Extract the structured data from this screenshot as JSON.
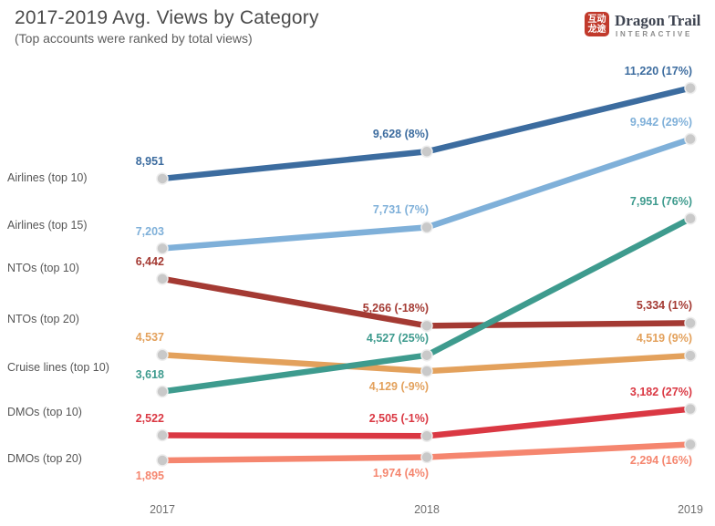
{
  "header": {
    "title": "2017-2019 Avg. Views by Category",
    "subtitle": "(Top accounts were ranked by total views)"
  },
  "logo": {
    "seal_line1": "互动",
    "seal_line2": "龙途",
    "seal_color": "#c13a2c",
    "name": "Dragon Trail",
    "tagline": "INTERACTIVE"
  },
  "chart_data": {
    "type": "line",
    "title": "2017-2019 Avg. Views by Category",
    "x": [
      "2017",
      "2018",
      "2019"
    ],
    "grid": false,
    "legend_position": "left-row-labels",
    "marker_color": "#c9c9c9",
    "series": [
      {
        "name": "Airlines (top 10)",
        "color": "#3c6c9f",
        "values": [
          8951,
          9628,
          11220
        ],
        "point_labels": [
          "8,951",
          "9,628 (8%)",
          "11,220 (17%)"
        ],
        "label_side": [
          "above",
          "above",
          "above"
        ]
      },
      {
        "name": "Airlines (top 15)",
        "color": "#7fb0d9",
        "values": [
          7203,
          7731,
          9942
        ],
        "point_labels": [
          "7,203",
          "7,731 (7%)",
          "9,942 (29%)"
        ],
        "label_side": [
          "above",
          "above",
          "above"
        ]
      },
      {
        "name": "NTOs (top 10)",
        "color": "#a43a33",
        "values": [
          6442,
          5266,
          5334
        ],
        "point_labels": [
          "6,442",
          "5,266 (-18%)",
          "5,334 (1%)"
        ],
        "label_side": [
          "above",
          "above",
          "above"
        ]
      },
      {
        "name": "NTOs (top 20)",
        "color": "#e3a15c",
        "values": [
          4537,
          4129,
          4519
        ],
        "point_labels": [
          "4,537",
          "4,129 (-9%)",
          "4,519 (9%)"
        ],
        "label_side": [
          "above",
          "below",
          "above"
        ]
      },
      {
        "name": "Cruise lines (top 10)",
        "color": "#3e9b8e",
        "values": [
          3618,
          4527,
          7951
        ],
        "point_labels": [
          "3,618",
          "4,527 (25%)",
          "7,951 (76%)"
        ],
        "label_side": [
          "above",
          "above",
          "above"
        ]
      },
      {
        "name": "DMOs (top 10)",
        "color": "#da3843",
        "values": [
          2522,
          2505,
          3182
        ],
        "point_labels": [
          "2,522",
          "2,505 (-1%)",
          "3,182 (27%)"
        ],
        "label_side": [
          "above",
          "above",
          "above"
        ]
      },
      {
        "name": "DMOs (top 20)",
        "color": "#f5866f",
        "values": [
          1895,
          1974,
          2294
        ],
        "point_labels": [
          "1,895",
          "1,974 (4%)",
          "2,294 (16%)"
        ],
        "label_side": [
          "below",
          "below",
          "below"
        ]
      }
    ]
  }
}
